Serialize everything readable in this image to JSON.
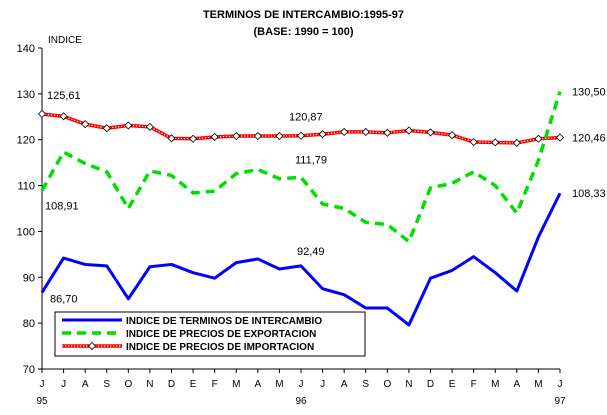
{
  "chart_data": {
    "type": "line",
    "title": "TERMINOS DE INTERCAMBIO:1995-97",
    "subtitle": "(BASE: 1990 = 100)",
    "ylabel": "INDICE",
    "xlabel": "",
    "ylim": [
      70,
      140
    ],
    "yticks": [
      70,
      80,
      90,
      100,
      110,
      120,
      130,
      140
    ],
    "grid": false,
    "legend_position": "bottom-left",
    "categories": [
      "J",
      "J",
      "A",
      "S",
      "O",
      "N",
      "D",
      "E",
      "F",
      "M",
      "A",
      "M",
      "J",
      "J",
      "A",
      "S",
      "O",
      "N",
      "D",
      "E",
      "F",
      "M",
      "A",
      "M",
      "J"
    ],
    "year_labels": [
      {
        "index": 0,
        "label": "95"
      },
      {
        "index": 12,
        "label": "96"
      },
      {
        "index": 24,
        "label": "97"
      }
    ],
    "series": [
      {
        "name": "INDICE DE TERMINOS DE INTERCAMBIO",
        "color": "#0000ff",
        "style": "solid",
        "values": [
          86.7,
          94.2,
          92.8,
          92.5,
          85.3,
          92.3,
          92.8,
          91.0,
          89.8,
          93.2,
          94.0,
          91.8,
          92.49,
          87.5,
          86.2,
          83.3,
          83.3,
          79.6,
          89.8,
          91.5,
          94.5,
          91.0,
          87.0,
          98.8,
          108.33
        ]
      },
      {
        "name": "INDICE DE PRECIOS DE EXPORTACION",
        "color": "#00dd00",
        "style": "dashed",
        "values": [
          108.91,
          117.3,
          114.8,
          113.0,
          105.0,
          113.2,
          112.2,
          108.4,
          108.8,
          112.6,
          113.5,
          111.5,
          111.79,
          106.0,
          105.0,
          102.0,
          101.5,
          97.8,
          109.5,
          110.5,
          113.0,
          110.0,
          104.0,
          115.5,
          130.5
        ]
      },
      {
        "name": "INDICE DE PRECIOS DE IMPORTACION",
        "color": "#ff0000",
        "style": "marked",
        "values": [
          125.61,
          125.1,
          123.4,
          122.5,
          123.1,
          122.8,
          120.3,
          120.2,
          120.6,
          120.8,
          120.8,
          120.8,
          120.87,
          121.2,
          121.7,
          121.7,
          121.5,
          122.0,
          121.6,
          121.0,
          119.5,
          119.4,
          119.3,
          120.2,
          120.46
        ]
      }
    ],
    "data_labels": [
      {
        "series": 2,
        "index": 0,
        "text": "125,61"
      },
      {
        "series": 1,
        "index": 0,
        "text": "108,91"
      },
      {
        "series": 0,
        "index": 0,
        "text": "86,70"
      },
      {
        "series": 2,
        "index": 12,
        "text": "120,87"
      },
      {
        "series": 1,
        "index": 12,
        "text": "111,79"
      },
      {
        "series": 0,
        "index": 12,
        "text": "92,49"
      },
      {
        "series": 1,
        "index": 24,
        "text": "130,50"
      },
      {
        "series": 2,
        "index": 24,
        "text": "120,46"
      },
      {
        "series": 0,
        "index": 24,
        "text": "108,33"
      }
    ]
  }
}
